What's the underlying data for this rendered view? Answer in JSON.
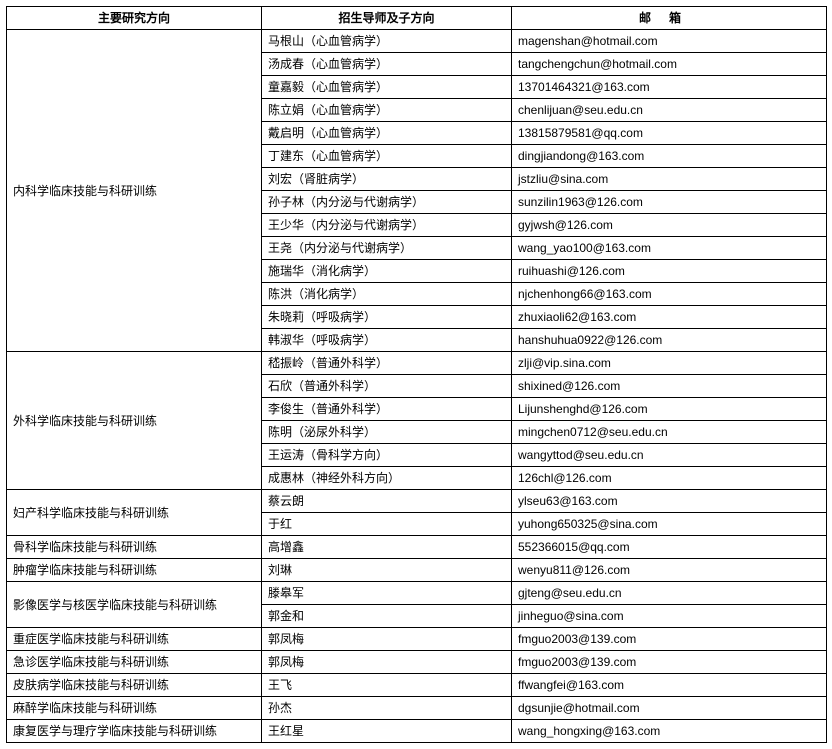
{
  "headers": {
    "direction": "主要研究方向",
    "advisor": "招生导师及子方向",
    "email": "邮箱"
  },
  "groups": [
    {
      "direction": "内科学临床技能与科研训练",
      "rows": [
        {
          "advisor": "马根山（心血管病学）",
          "email": "magenshan@hotmail.com"
        },
        {
          "advisor": "汤成春（心血管病学）",
          "email": "tangchengchun@hotmail.com"
        },
        {
          "advisor": "童嘉毅（心血管病学）",
          "email": "13701464321@163.com"
        },
        {
          "advisor": "陈立娟（心血管病学）",
          "email": "chenlijuan@seu.edu.cn"
        },
        {
          "advisor": "戴启明（心血管病学）",
          "email": "13815879581@qq.com"
        },
        {
          "advisor": "丁建东（心血管病学）",
          "email": "dingjiandong@163.com"
        },
        {
          "advisor": "刘宏（肾脏病学）",
          "email": "jstzliu@sina.com"
        },
        {
          "advisor": "孙子林（内分泌与代谢病学）",
          "email": "sunzilin1963@126.com"
        },
        {
          "advisor": "王少华（内分泌与代谢病学）",
          "email": "gyjwsh@126.com"
        },
        {
          "advisor": "王尧（内分泌与代谢病学）",
          "email": "wang_yao100@163.com"
        },
        {
          "advisor": "施瑞华（消化病学）",
          "email": "ruihuashi@126.com"
        },
        {
          "advisor": "陈洪（消化病学）",
          "email": "njchenhong66@163.com"
        },
        {
          "advisor": "朱晓莉（呼吸病学）",
          "email": "zhuxiaoli62@163.com"
        },
        {
          "advisor": "韩淑华（呼吸病学）",
          "email": "hanshuhua0922@126.com"
        }
      ]
    },
    {
      "direction": "外科学临床技能与科研训练",
      "rows": [
        {
          "advisor": "嵇振岭（普通外科学）",
          "email": "zlji@vip.sina.com"
        },
        {
          "advisor": "石欣（普通外科学）",
          "email": "shixined@126.com"
        },
        {
          "advisor": "李俊生（普通外科学）",
          "email": "Lijunshenghd@126.com"
        },
        {
          "advisor": "陈明（泌尿外科学）",
          "email": "mingchen0712@seu.edu.cn"
        },
        {
          "advisor": "王运涛（骨科学方向）",
          "email": "wangyttod@seu.edu.cn"
        },
        {
          "advisor": "成惠林（神经外科方向）",
          "email": "126chl@126.com"
        }
      ]
    },
    {
      "direction": "妇产科学临床技能与科研训练",
      "rows": [
        {
          "advisor": "蔡云朗",
          "email": "ylseu63@163.com"
        },
        {
          "advisor": "于红",
          "email": "yuhong650325@sina.com"
        }
      ]
    },
    {
      "direction": "骨科学临床技能与科研训练",
      "rows": [
        {
          "advisor": "高增鑫",
          "email": "552366015@qq.com"
        }
      ]
    },
    {
      "direction": "肿瘤学临床技能与科研训练",
      "rows": [
        {
          "advisor": "刘琳",
          "email": "wenyu811@126.com"
        }
      ]
    },
    {
      "direction": "影像医学与核医学临床技能与科研训练",
      "rows": [
        {
          "advisor": "滕皋军",
          "email": "gjteng@seu.edu.cn"
        },
        {
          "advisor": "郭金和",
          "email": "jinheguo@sina.com"
        }
      ]
    },
    {
      "direction": "重症医学临床技能与科研训练",
      "rows": [
        {
          "advisor": "郭凤梅",
          "email": "fmguo2003@139.com"
        }
      ]
    },
    {
      "direction": "急诊医学临床技能与科研训练",
      "rows": [
        {
          "advisor": "郭凤梅",
          "email": "fmguo2003@139.com"
        }
      ]
    },
    {
      "direction": "皮肤病学临床技能与科研训练",
      "rows": [
        {
          "advisor": "王飞",
          "email": "ffwangfei@163.com"
        }
      ]
    },
    {
      "direction": "麻醉学临床技能与科研训练",
      "rows": [
        {
          "advisor": "孙杰",
          "email": "dgsunjie@hotmail.com"
        }
      ]
    },
    {
      "direction": "康复医学与理疗学临床技能与科研训练",
      "rows": [
        {
          "advisor": "王红星",
          "email": "wang_hongxing@163.com"
        }
      ]
    }
  ]
}
